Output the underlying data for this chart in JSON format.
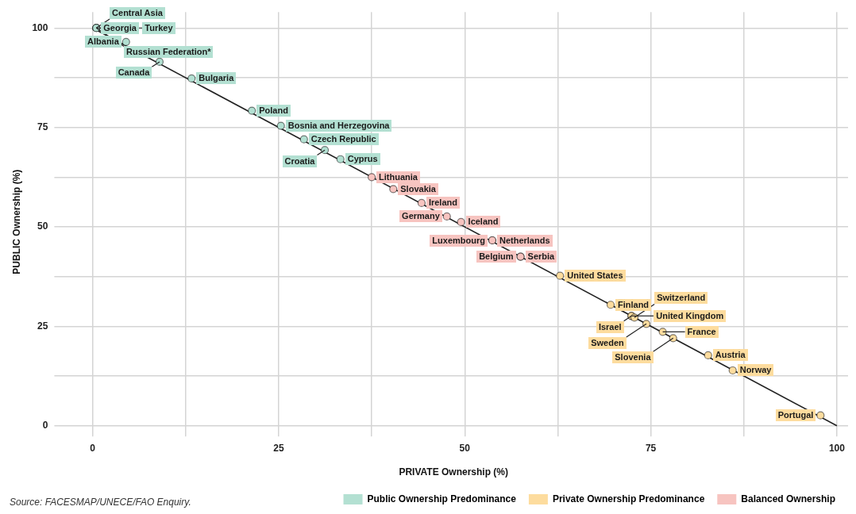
{
  "chart_data": {
    "type": "scatter",
    "xlabel": "PRIVATE Ownership (%)",
    "ylabel": "PUBLIC Ownership (%)",
    "xlim": [
      -4.5,
      101.5
    ],
    "ylim": [
      -1.5,
      104
    ],
    "xticks": [
      0,
      {
        "value": 12.5,
        "label": null
      },
      25,
      {
        "value": 37.5,
        "label": null
      },
      50,
      {
        "value": 62.5,
        "label": null
      },
      75,
      {
        "value": 87.5,
        "label": null
      },
      100
    ],
    "yticks": [
      0,
      {
        "value": 12.5,
        "label": null
      },
      25,
      {
        "value": 37.5,
        "label": null
      },
      50,
      {
        "value": 62.5,
        "label": null
      },
      75,
      {
        "value": 87.5,
        "label": null
      },
      100
    ],
    "grid": true,
    "legend": "bottom right",
    "marker": "circle",
    "annotations": [
      "Source: FACESMAP/UNECE/FAO Enquiry."
    ],
    "series": [
      {
        "name": "Public Ownership Predominance",
        "color": "#b3e0d2",
        "x": [
          0.5,
          0.5,
          0.5,
          0.5,
          4.5,
          9,
          13.3,
          21.4,
          25.3,
          28.4,
          31.2,
          33.3
        ],
        "values": [
          100,
          100,
          100,
          100,
          96.5,
          91.5,
          87.3,
          79.2,
          75.4,
          72,
          69.3,
          67
        ],
        "value_labels": [
          "Georgia",
          "Central Asia",
          "Russian Federation*",
          "Turkey",
          "Albania",
          "Canada",
          "Bulgaria",
          "Poland",
          "Bosnia and Herzegovina",
          "Czech Republic",
          "Croatia",
          "Cyprus"
        ]
      },
      {
        "name": "Private Ownership Predominance",
        "color": "#fddc9e",
        "x": [
          62.8,
          69.6,
          72.4,
          72.4,
          72.8,
          74.4,
          76.6,
          78,
          82.7,
          86,
          97.8
        ],
        "values": [
          37.7,
          30.4,
          27.6,
          27.6,
          27.2,
          25.6,
          23.6,
          22,
          17.7,
          13.9,
          2.6
        ],
        "value_labels": [
          "United States",
          "Finland",
          "Israel",
          "United Kingdom",
          "Switzerland",
          "Sweden",
          "France",
          "Slovenia",
          "Austria",
          "Norway",
          "Portugal"
        ]
      },
      {
        "name": "Balanced Ownership",
        "color": "#f7c4c0",
        "x": [
          37.5,
          40.4,
          44.2,
          47.6,
          49.5,
          53.7,
          53.7,
          57.5,
          57.5
        ],
        "values": [
          62.5,
          59.5,
          56,
          52.6,
          51.2,
          46.6,
          46.6,
          42.5,
          42.5
        ],
        "value_labels": [
          "Lithuania",
          "Slovakia",
          "Ireland",
          "Germany",
          "Iceland",
          "Netherlands",
          "Luxembourg",
          "Serbia",
          "Belgium"
        ]
      },
      {
        "type": "line",
        "color": "#222222",
        "marker": "none",
        "x": [
          0,
          100
        ],
        "values": [
          100,
          0
        ]
      }
    ]
  }
}
